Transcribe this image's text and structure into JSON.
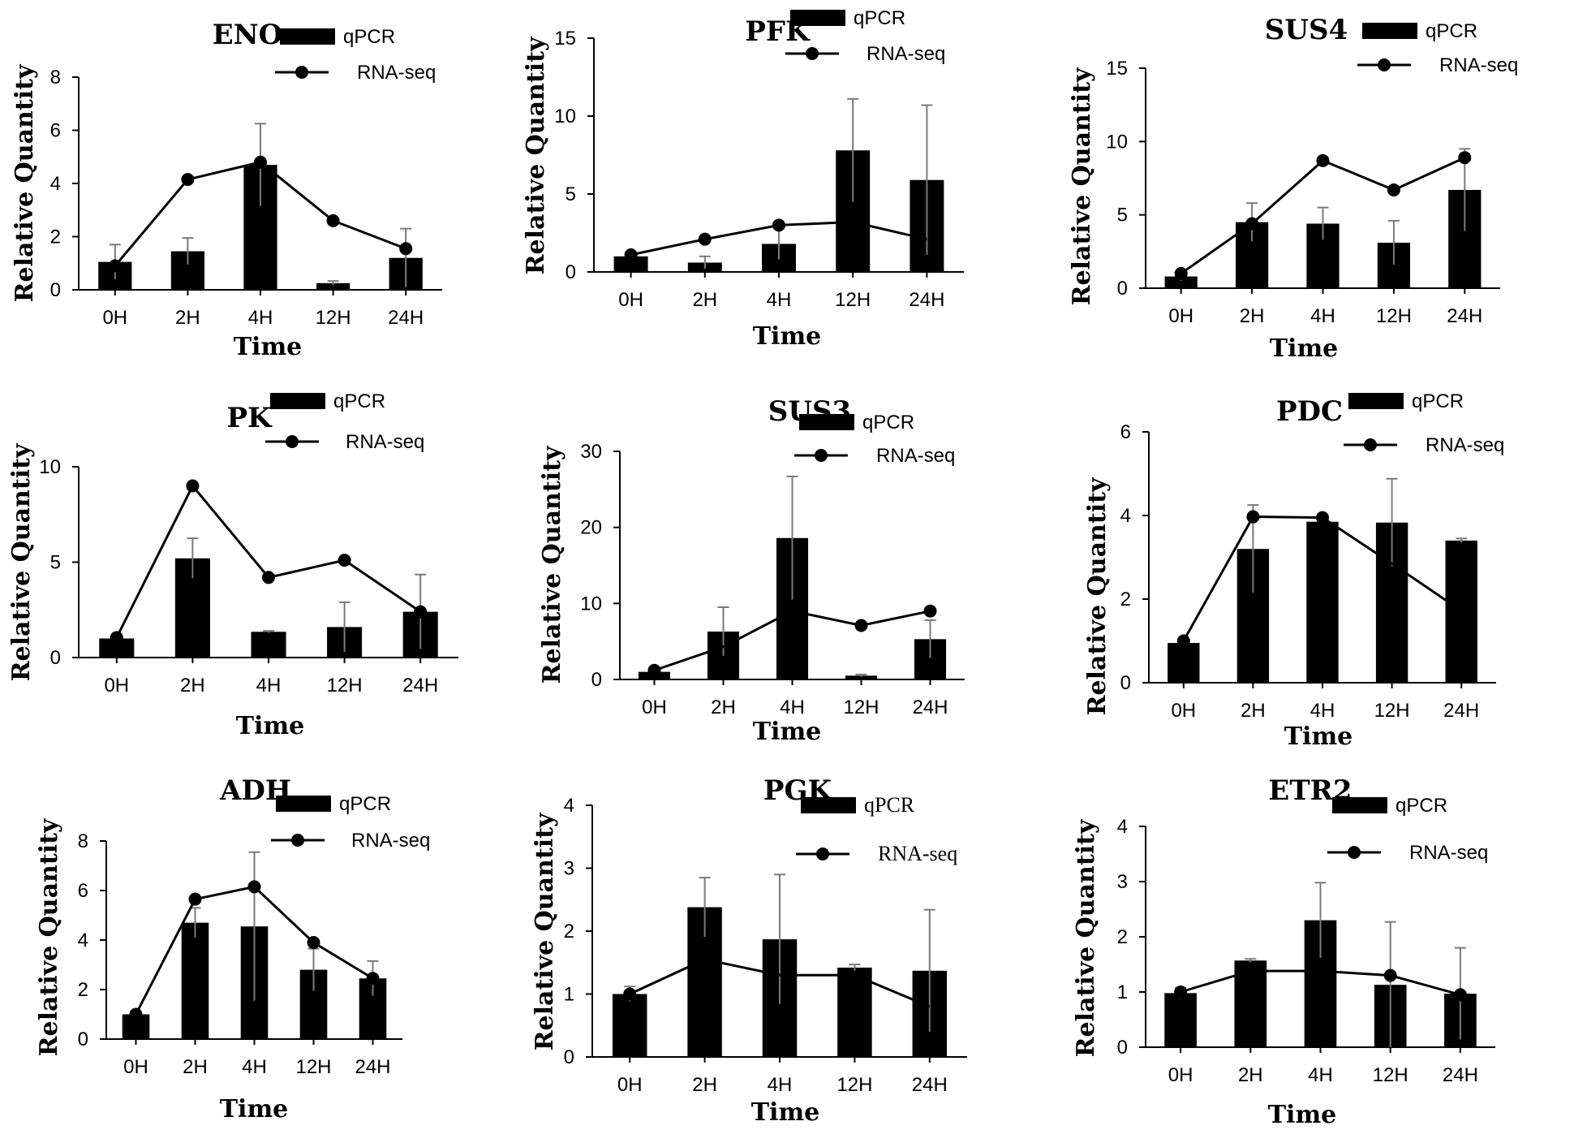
{
  "legend": {
    "bar": "qPCR",
    "line": "RNA-seq"
  },
  "chart_data": [
    {
      "type": "bar",
      "title": "ENO",
      "xlabel": "Time",
      "ylabel": "Relative Quantity",
      "categories": [
        "0H",
        "2H",
        "4H",
        "12H",
        "24H"
      ],
      "ylim": [
        0,
        8
      ],
      "yticks": [
        "0",
        "2",
        "4",
        "6",
        "8"
      ],
      "series": [
        {
          "name": "qPCR",
          "type": "bar",
          "values": [
            1.05,
            1.45,
            4.7,
            0.25,
            1.2
          ],
          "errors": [
            0.65,
            0.5,
            1.55,
            0.08,
            1.1
          ]
        },
        {
          "name": "RNA-seq",
          "type": "line",
          "values": [
            0.9,
            4.15,
            4.8,
            2.6,
            1.55
          ]
        }
      ]
    },
    {
      "type": "bar",
      "title": "PFK",
      "xlabel": "Time",
      "ylabel": "Relative Quantity",
      "categories": [
        "0H",
        "2H",
        "4H",
        "12H",
        "24H"
      ],
      "ylim": [
        0,
        15
      ],
      "yticks": [
        "0",
        "5",
        "10",
        "15"
      ],
      "series": [
        {
          "name": "qPCR",
          "type": "bar",
          "values": [
            1.0,
            0.6,
            1.8,
            7.8,
            5.9
          ],
          "errors": [
            0.3,
            0.4,
            1.0,
            3.3,
            4.8
          ]
        },
        {
          "name": "RNA-seq",
          "type": "line",
          "values": [
            1.1,
            2.1,
            3.0,
            3.2,
            2.1
          ],
          "markers": [
            true,
            true,
            true,
            false,
            false
          ]
        }
      ]
    },
    {
      "type": "bar",
      "title": "SUS4",
      "xlabel": "Time",
      "ylabel": "Relative Quantity",
      "categories": [
        "0H",
        "2H",
        "4H",
        "12H",
        "24H"
      ],
      "ylim": [
        0,
        15
      ],
      "yticks": [
        "0",
        "5",
        "10",
        "15"
      ],
      "series": [
        {
          "name": "qPCR",
          "type": "bar",
          "values": [
            0.8,
            4.5,
            4.4,
            3.1,
            6.7
          ],
          "errors": [
            0.3,
            1.3,
            1.1,
            1.5,
            2.8
          ]
        },
        {
          "name": "RNA-seq",
          "type": "line",
          "values": [
            1.0,
            4.4,
            8.7,
            6.7,
            8.9
          ]
        }
      ]
    },
    {
      "type": "bar",
      "title": "PK",
      "xlabel": "Time",
      "ylabel": "Relative Quantity",
      "categories": [
        "0H",
        "2H",
        "4H",
        "12H",
        "24H"
      ],
      "ylim": [
        0,
        10
      ],
      "yticks": [
        "0",
        "5",
        "10"
      ],
      "series": [
        {
          "name": "qPCR",
          "type": "bar",
          "values": [
            1.0,
            5.2,
            1.35,
            1.6,
            2.4
          ],
          "errors": [
            0.15,
            1.05,
            0.05,
            1.3,
            1.95
          ]
        },
        {
          "name": "RNA-seq",
          "type": "line",
          "values": [
            1.05,
            9.0,
            4.2,
            5.1,
            2.4
          ]
        }
      ]
    },
    {
      "type": "bar",
      "title": "SUS3",
      "xlabel": "Time",
      "ylabel": "Relative Quantity",
      "categories": [
        "0H",
        "2H",
        "4H",
        "12H",
        "24H"
      ],
      "ylim": [
        0,
        30
      ],
      "yticks": [
        "0",
        "10",
        "20",
        "30"
      ],
      "series": [
        {
          "name": "qPCR",
          "type": "bar",
          "values": [
            1.0,
            6.3,
            18.6,
            0.5,
            5.3
          ],
          "errors": [
            0.2,
            3.2,
            8.1,
            0.15,
            2.5
          ]
        },
        {
          "name": "RNA-seq",
          "type": "line",
          "values": [
            1.2,
            4.3,
            9.0,
            7.1,
            9.0
          ],
          "markers": [
            true,
            false,
            false,
            true,
            true
          ]
        }
      ]
    },
    {
      "type": "bar",
      "title": "PDC",
      "xlabel": "Time",
      "ylabel": "Relative Quantity",
      "categories": [
        "0H",
        "2H",
        "4H",
        "12H",
        "24H"
      ],
      "ylim": [
        0,
        6
      ],
      "yticks": [
        "0",
        "2",
        "4",
        "6"
      ],
      "series": [
        {
          "name": "qPCR",
          "type": "bar",
          "values": [
            0.95,
            3.2,
            3.85,
            3.83,
            3.4
          ],
          "errors": [
            0.05,
            1.05,
            0.05,
            1.05,
            0.05
          ]
        },
        {
          "name": "RNA-seq",
          "type": "line",
          "values": [
            1.0,
            3.97,
            3.95,
            2.85,
            1.72
          ],
          "markers": [
            true,
            true,
            true,
            false,
            false
          ]
        }
      ]
    },
    {
      "type": "bar",
      "title": "ADH",
      "xlabel": "Time",
      "ylabel": "Relative Quantity",
      "categories": [
        "0H",
        "2H",
        "4H",
        "12H",
        "24H"
      ],
      "ylim": [
        0,
        8
      ],
      "yticks": [
        "0",
        "2",
        "4",
        "6",
        "8"
      ],
      "series": [
        {
          "name": "qPCR",
          "type": "bar",
          "values": [
            1.0,
            4.7,
            4.55,
            2.8,
            2.45
          ],
          "errors": [
            0.1,
            0.6,
            3.0,
            0.85,
            0.7
          ]
        },
        {
          "name": "RNA-seq",
          "type": "line",
          "values": [
            1.0,
            5.65,
            6.15,
            3.9,
            2.45
          ]
        }
      ]
    },
    {
      "type": "bar",
      "title": "PGK",
      "xlabel": "Time",
      "ylabel": "Relative Quantity",
      "categories": [
        "0H",
        "2H",
        "4H",
        "12H",
        "24H"
      ],
      "ylim": [
        0,
        4
      ],
      "yticks": [
        "0",
        "1",
        "2",
        "3",
        "4"
      ],
      "series": [
        {
          "name": "qPCR",
          "type": "bar",
          "values": [
            1.0,
            2.38,
            1.87,
            1.42,
            1.37
          ],
          "errors": [
            0.12,
            0.47,
            1.03,
            0.05,
            0.97
          ]
        },
        {
          "name": "RNA-seq",
          "type": "line",
          "values": [
            1.0,
            1.55,
            1.3,
            1.3,
            0.8
          ],
          "markers": [
            true,
            false,
            false,
            false,
            false
          ]
        }
      ]
    },
    {
      "type": "bar",
      "title": "ETR2",
      "xlabel": "Time",
      "ylabel": "Relative Quantity",
      "categories": [
        "0H",
        "2H",
        "4H",
        "12H",
        "24H"
      ],
      "ylim": [
        0,
        4
      ],
      "yticks": [
        "0",
        "1",
        "2",
        "3",
        "4"
      ],
      "series": [
        {
          "name": "qPCR",
          "type": "bar",
          "values": [
            0.98,
            1.57,
            2.3,
            1.13,
            0.97
          ],
          "errors": [
            0.1,
            0.03,
            0.68,
            1.14,
            0.83
          ]
        },
        {
          "name": "RNA-seq",
          "type": "line",
          "values": [
            1.0,
            1.38,
            1.38,
            1.3,
            0.95
          ],
          "markers": [
            true,
            false,
            false,
            true,
            true
          ]
        }
      ]
    }
  ]
}
